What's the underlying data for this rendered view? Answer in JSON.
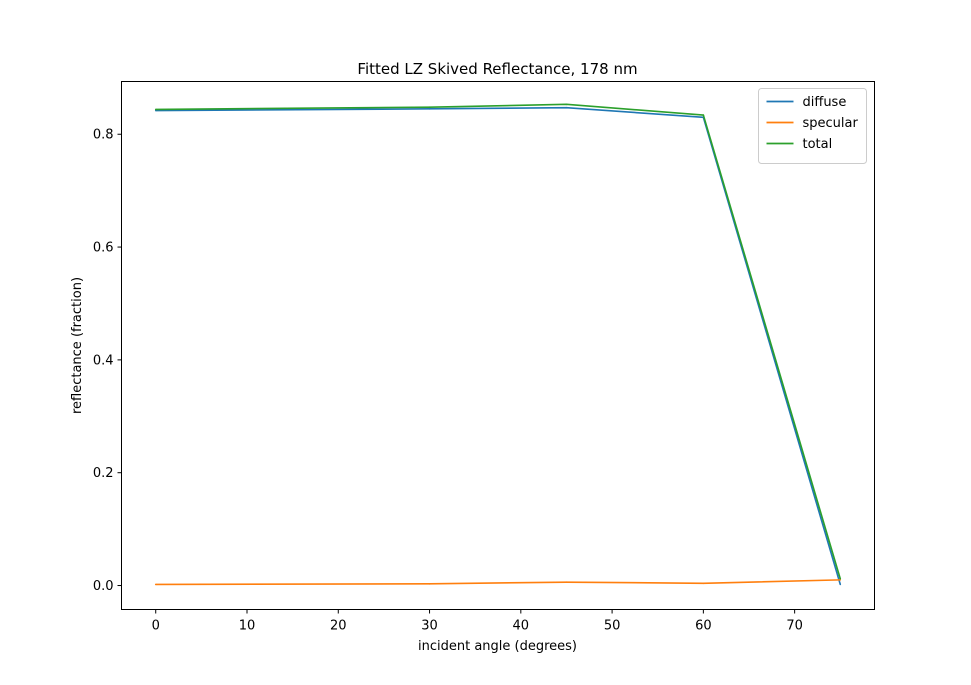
{
  "chart_data": {
    "type": "line",
    "title": "Fitted LZ Skived Reflectance, 178 nm",
    "xlabel": "incident angle (degrees)",
    "ylabel": "reflectance (fraction)",
    "xlim": [
      -3.75,
      78.75
    ],
    "ylim": [
      -0.0425,
      0.8935
    ],
    "xticks": [
      0,
      10,
      20,
      30,
      40,
      50,
      60,
      70
    ],
    "yticks": [
      0.0,
      0.2,
      0.4,
      0.6,
      0.8
    ],
    "ytick_labels": [
      "0.0",
      "0.2",
      "0.4",
      "0.6",
      "0.8"
    ],
    "legend_position": "top-right",
    "grid": false,
    "x": [
      0,
      30,
      45,
      60,
      75
    ],
    "series": [
      {
        "name": "diffuse",
        "color": "#1f77b4",
        "values": [
          0.842,
          0.845,
          0.847,
          0.83,
          0.002
        ]
      },
      {
        "name": "specular",
        "color": "#ff7f0e",
        "values": [
          0.002,
          0.003,
          0.006,
          0.004,
          0.01
        ]
      },
      {
        "name": "total",
        "color": "#2ca02c",
        "values": [
          0.844,
          0.848,
          0.853,
          0.834,
          0.012
        ]
      }
    ]
  }
}
